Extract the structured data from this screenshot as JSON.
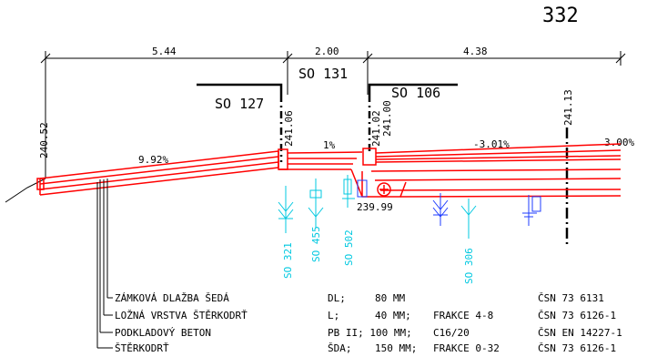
{
  "sheet_number": "332",
  "dimensions": {
    "left": "5.44",
    "middle": "2.00",
    "right": "4.38"
  },
  "objects": {
    "so_131": "SO 131",
    "so_127": "SO 127",
    "so_106": "SO 106"
  },
  "elevations": {
    "left_edge": "240.52",
    "left_curb": "241.06",
    "right_curb_top": "241.02",
    "right_curb_low": "241.00",
    "right_axis": "241.13",
    "inlet_bottom": "239.99"
  },
  "slopes": {
    "left": "9.92%",
    "middle": "1%",
    "right": "-3.01%",
    "far_right": "3.00%"
  },
  "utility_labels": [
    "SO 321",
    "SO 455",
    "SO 502",
    "SO 306"
  ],
  "layers": [
    {
      "name": "ZÁMKOVÁ DLAŽBA ŠEDÁ",
      "spec": "DL;",
      "value": "80 MM",
      "extra": "",
      "standard": "ČSN 73 6131"
    },
    {
      "name": "LOŽNÁ VRSTVA ŠTĚRKODRŤ",
      "spec": "L;",
      "value": "40 MM;",
      "extra": "FRAKCE 4-8",
      "standard": "ČSN 73 6126-1"
    },
    {
      "name": "PODKLADOVÝ  BETON",
      "spec": "PB II; 100 MM;",
      "value": "",
      "extra": "C16/20",
      "standard": "ČSN EN 14227-1"
    },
    {
      "name": "ŠTĚRKODRŤ",
      "spec": "ŠDA;",
      "value": "150 MM;",
      "extra": "FRAKCE 0-32",
      "standard": "ČSN 73 6126-1"
    }
  ],
  "colors": {
    "road": "#ff0000",
    "utility_blue": "#1f3cff",
    "utility_cyan": "#00c8e0",
    "ink": "#000000"
  }
}
